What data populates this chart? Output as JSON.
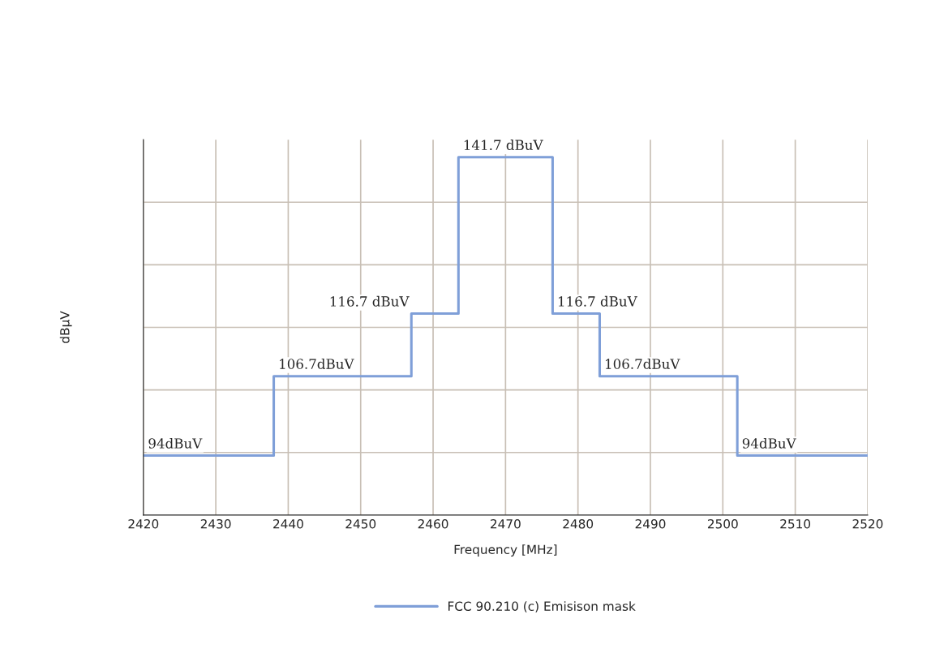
{
  "chart_data": {
    "type": "step",
    "xlabel": "Frequency [MHz]",
    "ylabel": "dBµV",
    "x": [
      2420,
      2438,
      2457,
      2463.5,
      2476.5,
      2483,
      2502,
      2520
    ],
    "series": [
      {
        "name": "FCC 90.210 (c) Emisison mask",
        "color": "#7f9fd8",
        "values": [
          94,
          106.7,
          116.7,
          141.7,
          116.7,
          106.7,
          94,
          94
        ],
        "value_labels": [
          "94dBuV",
          "106.7dBuV",
          "116.7 dBuV",
          "141.7 dBuV",
          "116.7 dBuV",
          "106.7dBuV",
          "94dBuV",
          null
        ]
      }
    ],
    "xlim": [
      2420,
      2520
    ],
    "xticks": [
      2420,
      2430,
      2440,
      2450,
      2460,
      2470,
      2480,
      2490,
      2500,
      2510,
      2520
    ],
    "ylim": [
      84.5,
      144.5
    ],
    "yticks": [
      {
        "value": 94.5,
        "label": null
      },
      {
        "value": 104.5,
        "label": null
      },
      {
        "value": 114.5,
        "label": null
      },
      {
        "value": 124.5,
        "label": null
      },
      {
        "value": 134.5,
        "label": null
      }
    ],
    "grid": true,
    "legend": "bottom",
    "line_style": "solid",
    "marker": "none"
  }
}
